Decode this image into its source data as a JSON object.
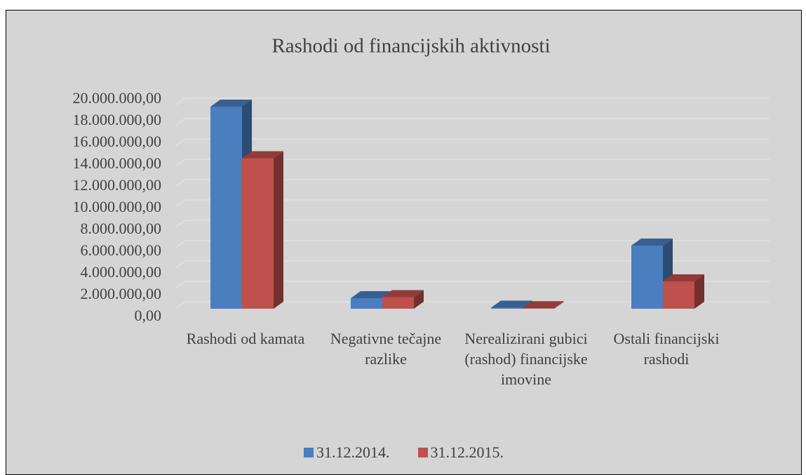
{
  "chart_data": {
    "type": "bar3d",
    "title": "Rashodi od financijskih aktivnosti",
    "categories": [
      "Rashodi od kamata",
      "Negativne tečajne razlike",
      "Nerealizirani gubici (rashod) financijske imovine",
      "Ostali financijski rashodi"
    ],
    "series": [
      {
        "name": "31.12.2014.",
        "color": "#4a7ebf",
        "values": [
          19200000,
          1000000,
          100000,
          6000000
        ]
      },
      {
        "name": "31.12.2015.",
        "color": "#c0504d",
        "values": [
          14300000,
          1100000,
          50000,
          2600000
        ]
      }
    ],
    "ylim": [
      0,
      20000000
    ],
    "yticks": [
      {
        "value": 0,
        "label": "0,00"
      },
      {
        "value": 2000000,
        "label": "2.000.000,00"
      },
      {
        "value": 4000000,
        "label": "4.000.000,00"
      },
      {
        "value": 6000000,
        "label": "6.000.000,00"
      },
      {
        "value": 8000000,
        "label": "8.000.000,00"
      },
      {
        "value": 10000000,
        "label": "10.000.000,00"
      },
      {
        "value": 12000000,
        "label": "12.000.000,00"
      },
      {
        "value": 14000000,
        "label": "14.000.000,00"
      },
      {
        "value": 16000000,
        "label": "16.000.000,00"
      },
      {
        "value": 18000000,
        "label": "18.000.000,00"
      },
      {
        "value": 20000000,
        "label": "20.000.000,00"
      }
    ],
    "grid": true,
    "legend": "bottom"
  }
}
